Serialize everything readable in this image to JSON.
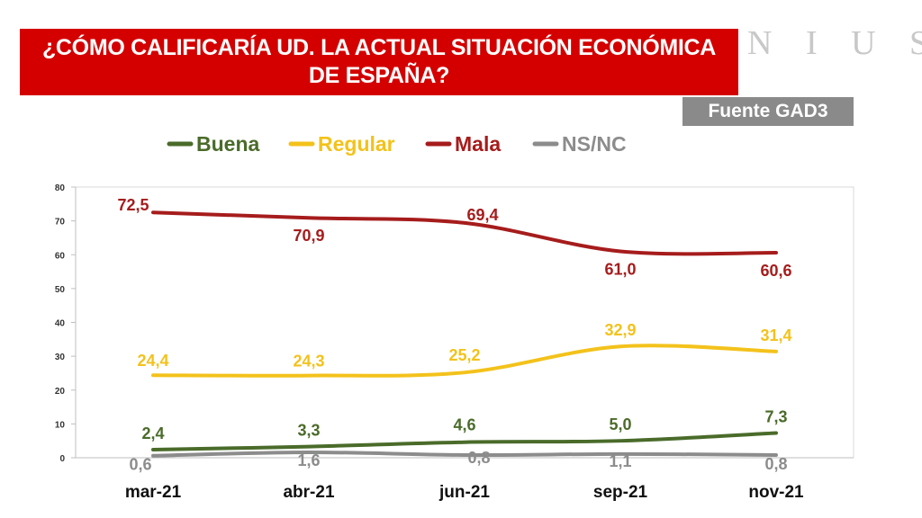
{
  "header": {
    "title_line1": "¿CÓMO CALIFICARÍA UD. LA ACTUAL SITUACIÓN ECONÓMICA",
    "title_line2": "DE ESPAÑA?",
    "logo": "N I U S",
    "source": "Fuente GAD3"
  },
  "chart_data": {
    "type": "line",
    "categories": [
      "mar-21",
      "abr-21",
      "jun-21",
      "sep-21",
      "nov-21"
    ],
    "ylim": [
      0,
      80
    ],
    "yticks": [
      "0",
      "10",
      "20",
      "30",
      "40",
      "50",
      "60",
      "70",
      "80"
    ],
    "grid": false,
    "legend_position": "top",
    "series": [
      {
        "name": "Buena",
        "color": "#4a6b2a",
        "values": [
          2.4,
          3.3,
          4.6,
          5.0,
          7.3
        ],
        "labels": [
          "2,4",
          "3,3",
          "4,6",
          "5,0",
          "7,3"
        ]
      },
      {
        "name": "Regular",
        "color": "#f3c21b",
        "values": [
          24.4,
          24.3,
          25.2,
          32.9,
          31.4
        ],
        "labels": [
          "24,4",
          "24,3",
          "25,2",
          "32,9",
          "31,4"
        ]
      },
      {
        "name": "Mala",
        "color": "#a61c1c",
        "values": [
          72.5,
          70.9,
          69.4,
          61.0,
          60.6
        ],
        "labels": [
          "72,5",
          "70,9",
          "69,4",
          "61,0",
          "60,6"
        ]
      },
      {
        "name": "NS/NC",
        "color": "#8c8c8c",
        "values": [
          0.6,
          1.6,
          0.8,
          1.1,
          0.8
        ],
        "labels": [
          "0,6",
          "1,6",
          "0,8",
          "1,1",
          "0,8"
        ]
      }
    ]
  }
}
